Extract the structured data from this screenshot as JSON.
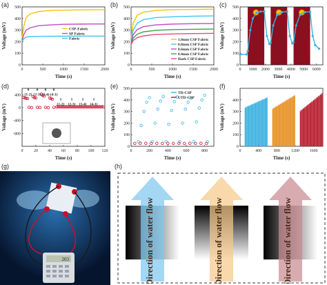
{
  "panels": {
    "a": {
      "label": "(a)"
    },
    "b": {
      "label": "(b)"
    },
    "c": {
      "label": "(c)"
    },
    "d": {
      "label": "(d)"
    },
    "e": {
      "label": "(e)"
    },
    "f": {
      "label": "(f)"
    },
    "g": {
      "label": "(g)"
    },
    "h": {
      "label": "(h)"
    }
  },
  "calculator_display": "203",
  "h_arrows": [
    {
      "text": "Direction of water flow",
      "color": "#7fc8f0"
    },
    {
      "text": "Direction of water flow",
      "color": "#f6c98a"
    },
    {
      "text": "Direction of water flow",
      "color": "#c98a92"
    }
  ],
  "chart_data": [
    {
      "panel": "a",
      "type": "line",
      "xlabel": "Time (s)",
      "ylabel": "Voltage (mV)",
      "xlim": [
        0,
        2000
      ],
      "ylim": [
        0,
        500
      ],
      "xticks": [
        0,
        500,
        1000,
        1500,
        2000
      ],
      "yticks": [
        0,
        100,
        200,
        300,
        400,
        500
      ],
      "legend_position": "center-right",
      "series": [
        {
          "name": "CSP-Fabric",
          "color": "#f5c400",
          "x": [
            0,
            40,
            100,
            200,
            400,
            700,
            1000,
            1500,
            2000
          ],
          "y": [
            230,
            330,
            410,
            440,
            460,
            470,
            472,
            475,
            476
          ]
        },
        {
          "name": "SP Fabric",
          "color": "#c04ac8",
          "x": [
            0,
            40,
            100,
            200,
            400,
            700,
            1000,
            1500,
            2000
          ],
          "y": [
            210,
            260,
            300,
            320,
            338,
            345,
            350,
            352,
            353
          ]
        },
        {
          "name": "Fabric",
          "color": "#3fc6f0",
          "x": [
            0,
            40,
            100,
            200,
            400,
            700,
            1000,
            1500,
            2000
          ],
          "y": [
            200,
            225,
            240,
            244,
            246,
            247,
            247,
            248,
            248
          ]
        }
      ]
    },
    {
      "panel": "b",
      "type": "line",
      "xlabel": "Time (s)",
      "ylabel": "Voltage (mV)",
      "xlim": [
        0,
        2000
      ],
      "ylim": [
        0,
        500
      ],
      "xticks": [
        0,
        500,
        1000,
        1500,
        2000
      ],
      "yticks": [
        0,
        100,
        200,
        300,
        400,
        500
      ],
      "legend_position": "bottom-right",
      "series": [
        {
          "name": "1.0mm CSP Fabric",
          "color": "#f5c400",
          "x": [
            0,
            50,
            150,
            300,
            600,
            1000,
            1500,
            2000
          ],
          "y": [
            230,
            360,
            430,
            455,
            470,
            476,
            478,
            480
          ]
        },
        {
          "name": "0.8mm CSP Fabric",
          "color": "#3fc6f0",
          "x": [
            0,
            50,
            150,
            300,
            600,
            1000,
            1500,
            2000
          ],
          "y": [
            210,
            300,
            360,
            390,
            408,
            415,
            420,
            422
          ]
        },
        {
          "name": "0.6mm CSP Fabric",
          "color": "#c04ac8",
          "x": [
            0,
            50,
            150,
            300,
            600,
            1000,
            1500,
            2000
          ],
          "y": [
            195,
            260,
            305,
            330,
            345,
            352,
            355,
            357
          ]
        },
        {
          "name": "0.4mm CSP Fabric",
          "color": "#3aa34a",
          "x": [
            0,
            50,
            150,
            300,
            600,
            1000,
            1500,
            2000
          ],
          "y": [
            185,
            230,
            265,
            285,
            298,
            304,
            307,
            309
          ]
        },
        {
          "name": "Dark CSP Fabric",
          "color": "#e8477e",
          "x": [
            0,
            50,
            150,
            300,
            600,
            1000,
            1500,
            2000
          ],
          "y": [
            175,
            210,
            235,
            250,
            262,
            267,
            270,
            272
          ]
        }
      ]
    },
    {
      "panel": "c",
      "type": "line",
      "xlabel": "Time (s)",
      "ylabel": "Voltage (mV)",
      "xlim": [
        0,
        6500
      ],
      "ylim": [
        0,
        500
      ],
      "xticks": [
        0,
        1000,
        2000,
        3000,
        4000,
        5000,
        6000
      ],
      "yticks": [
        0,
        100,
        200,
        300,
        400,
        500
      ],
      "shaded_intervals": [
        [
          600,
          1900
        ],
        [
          2400,
          3700
        ],
        [
          4200,
          5500
        ]
      ],
      "series": [
        {
          "name": "",
          "color": "#3ab0e0",
          "x": [
            0,
            500,
            600,
            800,
            1000,
            1300,
            1600,
            1900,
            2100,
            2300,
            2400,
            2600,
            2900,
            3300,
            3700,
            3900,
            4100,
            4200,
            4400,
            4700,
            5100,
            5500,
            5700,
            5900,
            6200
          ],
          "y": [
            90,
            90,
            120,
            300,
            400,
            450,
            460,
            462,
            250,
            180,
            190,
            340,
            430,
            455,
            460,
            250,
            185,
            195,
            340,
            430,
            455,
            458,
            250,
            170,
            140
          ]
        }
      ]
    },
    {
      "panel": "d",
      "type": "scatter",
      "xlabel": "Time (s)",
      "ylabel": "Voltage (mV)",
      "xlim": [
        0,
        120
      ],
      "ylim": [
        -1200,
        600
      ],
      "xticks": [
        0,
        20,
        40,
        60,
        80,
        100,
        120
      ],
      "yticks": [
        -800,
        -400,
        0,
        400
      ],
      "annotations": [
        "0\n(1-2)",
        "0\n(2-3)",
        "0\n(3-4)",
        "0\n(4-1)",
        "1\n(1-2)",
        "1\n(2-3)",
        "1\n(3-4)",
        "1\n(4-1)"
      ],
      "series": [
        {
          "name": "",
          "color": "#c8102e",
          "x": [
            2,
            4,
            6,
            8,
            10,
            14,
            16,
            18,
            20,
            22,
            26,
            28,
            30,
            32,
            34,
            38,
            40,
            42,
            44,
            46,
            50,
            52,
            54,
            56,
            58,
            60,
            62,
            64,
            66,
            68,
            70,
            72,
            74,
            76,
            78,
            80,
            82,
            84,
            86,
            88,
            90,
            92,
            94,
            96,
            98,
            100,
            102,
            104,
            106,
            108,
            110,
            112,
            114,
            116,
            118
          ],
          "y": [
            320,
            300,
            290,
            280,
            10,
            0,
            340,
            310,
            300,
            10,
            0,
            420,
            380,
            360,
            10,
            0,
            300,
            280,
            260,
            10,
            20,
            30,
            20,
            30,
            20,
            30,
            20,
            30,
            20,
            30,
            20,
            30,
            20,
            30,
            20,
            30,
            20,
            30,
            20,
            30,
            20,
            30,
            20,
            30,
            20,
            30,
            20,
            30,
            20,
            30,
            20,
            30,
            20,
            30,
            20
          ]
        }
      ]
    },
    {
      "panel": "e",
      "type": "scatter",
      "xlabel": "Time (s)",
      "ylabel": "Voltage (mV)",
      "xlim": [
        0,
        900
      ],
      "ylim": [
        0,
        500
      ],
      "xticks": [
        0,
        200,
        400,
        600,
        800
      ],
      "yticks": [
        0,
        100,
        200,
        300,
        400,
        500
      ],
      "legend_position": "top-right",
      "series": [
        {
          "name": "TD-CSP",
          "color": "#3ab0e0",
          "x": [
            80,
            110,
            140,
            170,
            200,
            230,
            260,
            290,
            320,
            350,
            380,
            410,
            440,
            470,
            500,
            530,
            560,
            590,
            620,
            650,
            680,
            710,
            740,
            770,
            800,
            830
          ],
          "y": [
            40,
            180,
            300,
            380,
            420,
            40,
            200,
            320,
            390,
            430,
            40,
            190,
            310,
            385,
            425,
            40,
            200,
            320,
            380,
            415,
            40,
            210,
            330,
            400,
            440,
            40
          ]
        },
        {
          "name": "UTD-CSP",
          "color": "#c8102e",
          "x": [
            40,
            100,
            160,
            220,
            280,
            340,
            400,
            460,
            520,
            580,
            640,
            700,
            760,
            820
          ],
          "y": [
            25,
            26,
            26,
            25,
            26,
            25,
            26,
            25,
            26,
            25,
            26,
            25,
            26,
            25
          ]
        }
      ]
    },
    {
      "panel": "f",
      "type": "bar",
      "xlabel": "Time (s)",
      "ylabel": "Voltage (mV)",
      "xlim": [
        0,
        1800
      ],
      "ylim": [
        0,
        500
      ],
      "xticks": [
        0,
        400,
        800,
        1200,
        1600
      ],
      "yticks": [
        0,
        100,
        200,
        300,
        400
      ],
      "series": [
        {
          "name": "",
          "color": "#3ab0e0",
          "x_range": [
            100,
            600
          ],
          "values_start": 330,
          "values_end": 420
        },
        {
          "name": "",
          "color": "#e8901e",
          "x_range": [
            700,
            1200
          ],
          "values_start": 320,
          "values_end": 440
        },
        {
          "name": "",
          "color": "#b81a2a",
          "x_range": [
            1300,
            1800
          ],
          "values_start": 300,
          "values_end": 460
        }
      ]
    }
  ]
}
